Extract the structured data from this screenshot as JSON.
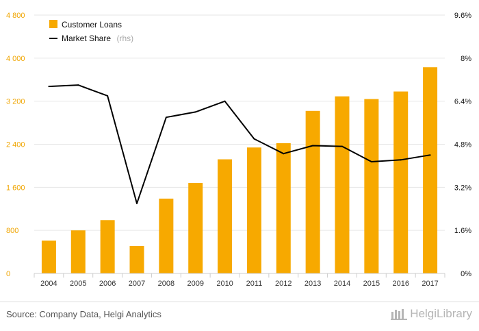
{
  "chart_data": {
    "type": "bar",
    "categories": [
      "2004",
      "2005",
      "2006",
      "2007",
      "2008",
      "2009",
      "2010",
      "2011",
      "2012",
      "2013",
      "2014",
      "2015",
      "2016",
      "2017"
    ],
    "series": [
      {
        "name": "Customer Loans",
        "type": "bar",
        "axis": "left",
        "color": "#f7a900",
        "values": [
          610,
          800,
          990,
          510,
          1390,
          1680,
          2120,
          2340,
          2420,
          3020,
          3290,
          3240,
          3380,
          3830
        ]
      },
      {
        "name": "Market Share",
        "note": "(rhs)",
        "type": "line",
        "axis": "right",
        "color": "#000000",
        "values": [
          6.95,
          7.0,
          6.6,
          2.6,
          5.8,
          6.0,
          6.4,
          5.0,
          4.45,
          4.75,
          4.72,
          4.15,
          4.22,
          4.4
        ]
      }
    ],
    "y_left": {
      "ylim": [
        0,
        4800
      ],
      "ticks": [
        "0",
        "800",
        "1 600",
        "2 400",
        "3 200",
        "4 000",
        "4 800"
      ],
      "color": "#f0a500"
    },
    "y_right": {
      "ylim": [
        0,
        9.6
      ],
      "ticks": [
        "0%",
        "1.6%",
        "3.2%",
        "4.8%",
        "6.4%",
        "8%",
        "9.6%"
      ]
    },
    "grid": true,
    "legend_position": "top-left",
    "title": "",
    "xlabel": "",
    "ylabel": ""
  },
  "footer": {
    "source": "Source: Company Data, Helgi Analytics",
    "brand": "HelgiLibrary"
  }
}
